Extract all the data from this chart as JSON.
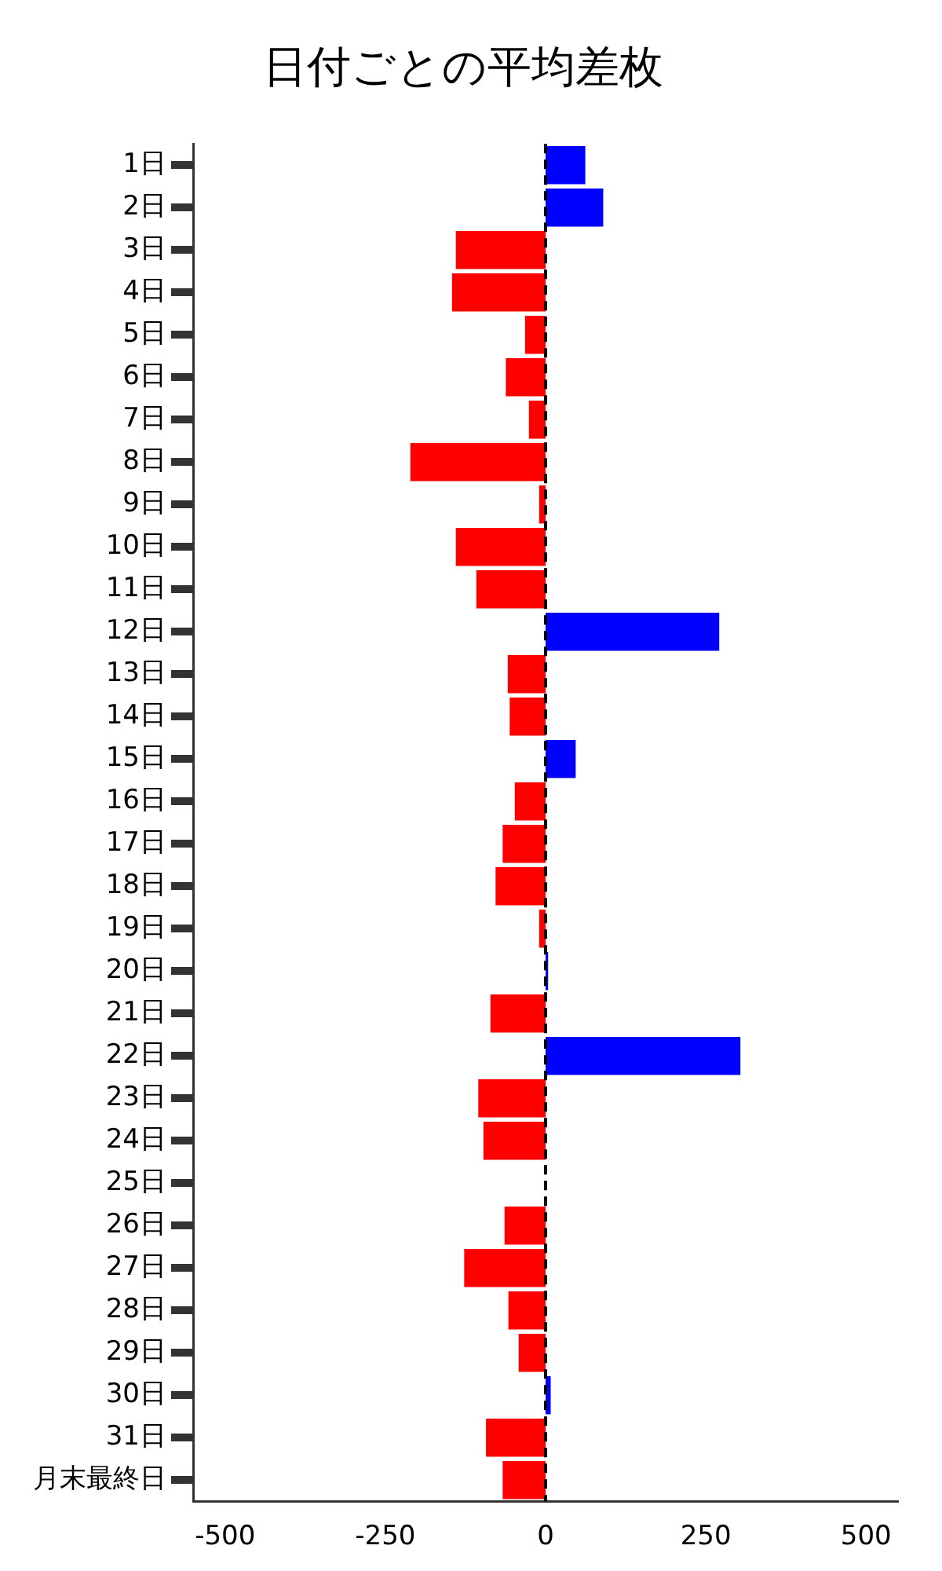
{
  "chart_data": {
    "type": "bar",
    "orientation": "horizontal",
    "title": "日付ごとの平均差枚",
    "categories": [
      "1日",
      "2日",
      "3日",
      "4日",
      "5日",
      "6日",
      "7日",
      "8日",
      "9日",
      "10日",
      "11日",
      "12日",
      "13日",
      "14日",
      "15日",
      "16日",
      "17日",
      "18日",
      "19日",
      "20日",
      "21日",
      "22日",
      "23日",
      "24日",
      "25日",
      "26日",
      "27日",
      "28日",
      "29日",
      "30日",
      "31日",
      "月末最終日"
    ],
    "values": [
      62,
      90,
      -140,
      -146,
      -32,
      -62,
      -26,
      -211,
      -10,
      -140,
      -108,
      271,
      -59,
      -56,
      47,
      -48,
      -67,
      -78,
      -10,
      4,
      -86,
      304,
      -105,
      -97,
      null,
      -64,
      -127,
      -58,
      -42,
      8,
      -93,
      -67
    ],
    "colors": [
      "#0000ff",
      "#0000ff",
      "#ff0000",
      "#ff0000",
      "#ff0000",
      "#ff0000",
      "#ff0000",
      "#ff0000",
      "#ff0000",
      "#ff0000",
      "#ff0000",
      "#0000ff",
      "#ff0000",
      "#ff0000",
      "#0000ff",
      "#ff0000",
      "#ff0000",
      "#ff0000",
      "#ff0000",
      "#0000ff",
      "#ff0000",
      "#0000ff",
      "#ff0000",
      "#ff0000",
      "#ff0000",
      "#ff0000",
      "#ff0000",
      "#ff0000",
      "#ff0000",
      "#0000ff",
      "#ff0000",
      "#ff0000"
    ],
    "xlim": [
      -550,
      550
    ],
    "xticks": [
      -500,
      -250,
      0,
      250,
      500
    ],
    "ref_lines": [
      {
        "axis": "x",
        "value": 0,
        "color": "#000000",
        "line_style": "dashed"
      }
    ],
    "grid": false,
    "legend": false
  }
}
